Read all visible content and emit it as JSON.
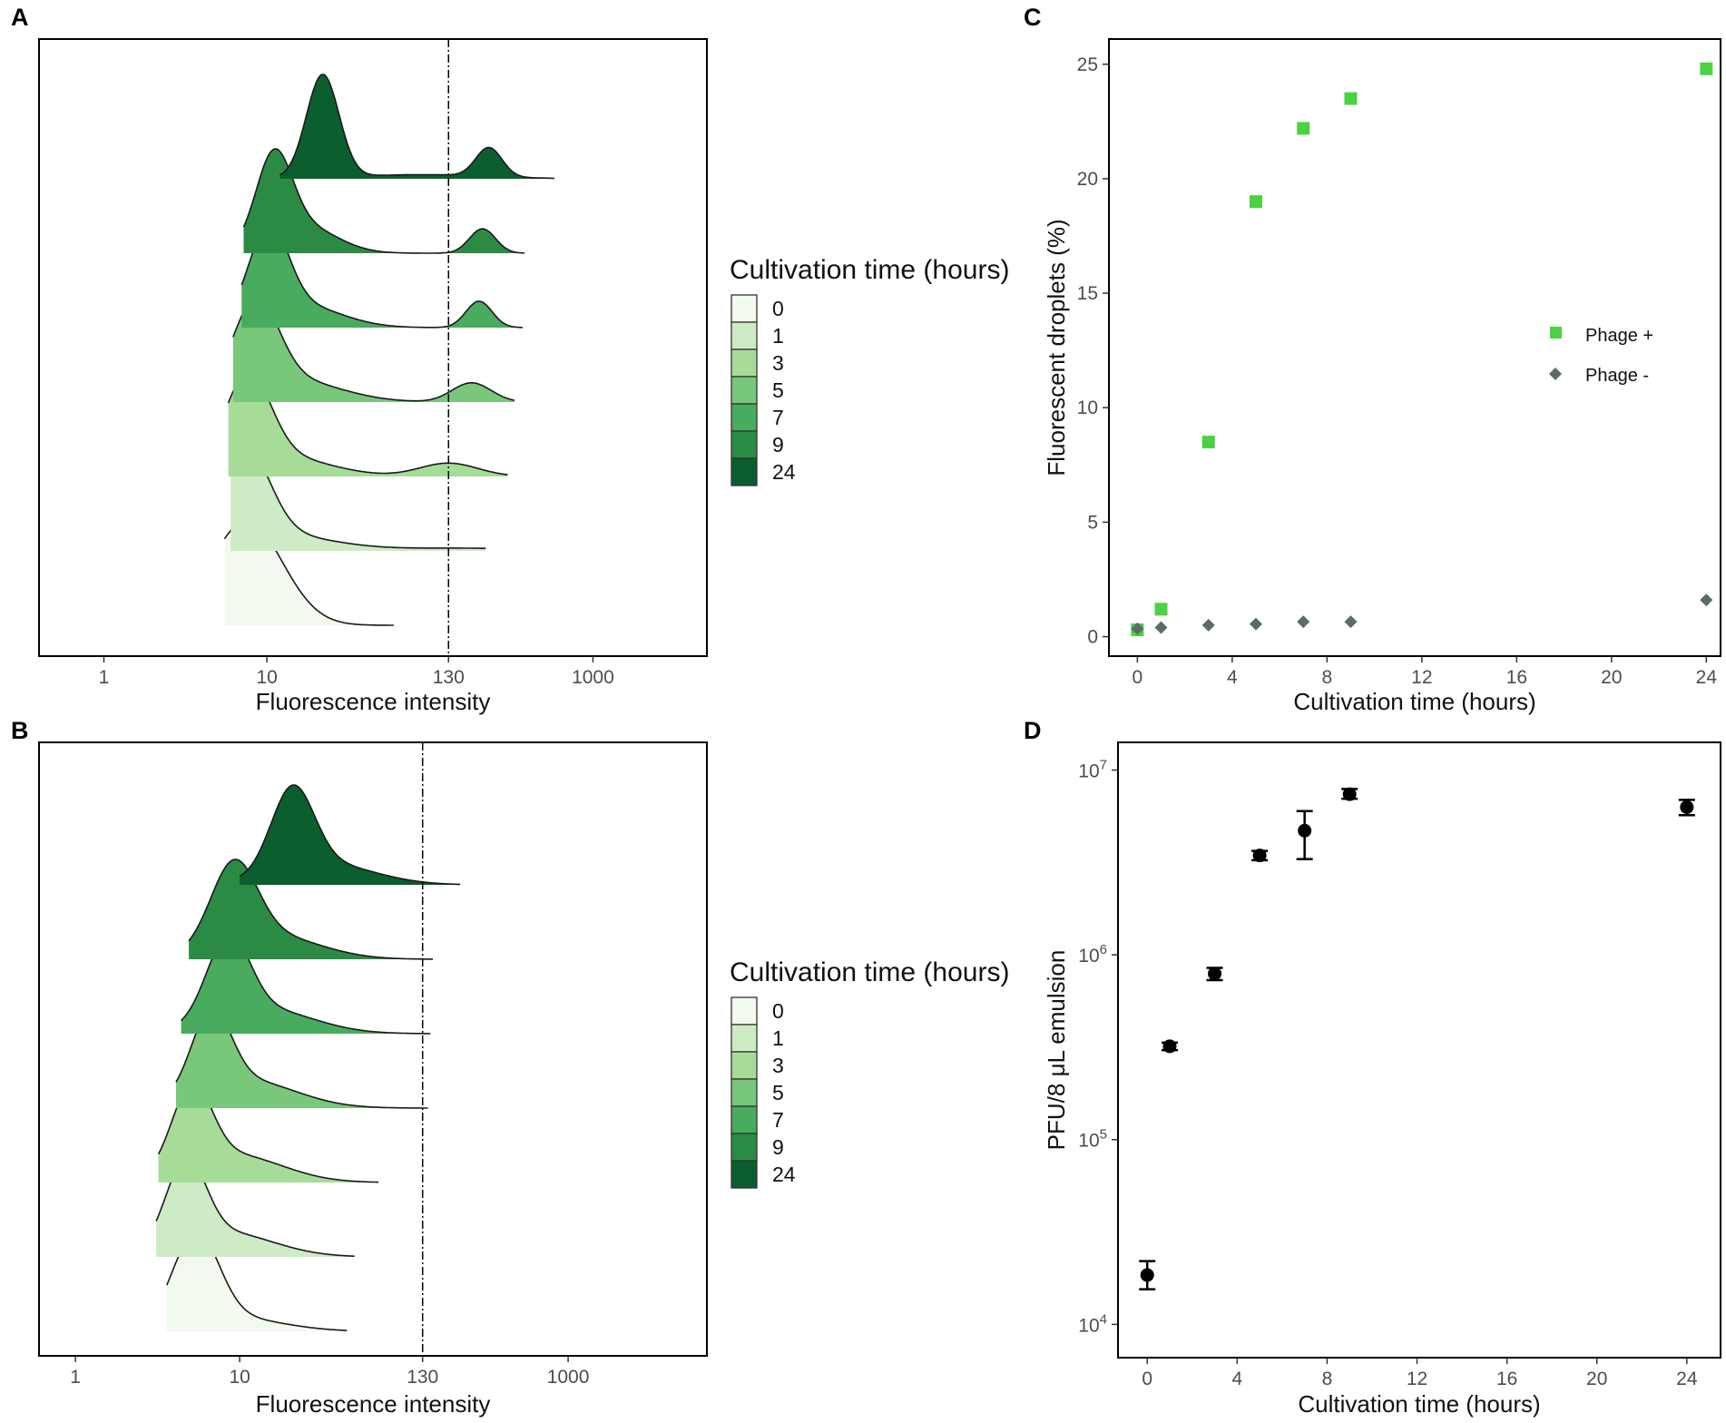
{
  "figure": {
    "panels": {
      "a": "A",
      "b": "B",
      "c": "C",
      "d": "D"
    }
  },
  "chart_data": [
    {
      "id": "A",
      "type": "area",
      "subtype": "ridgeline-density",
      "xlabel": "Fluorescence intensity",
      "xscale": "log10",
      "xlim": [
        0.4,
        5000
      ],
      "xticks": [
        1,
        10,
        130,
        1000
      ],
      "xtick_labels": [
        "1",
        "10",
        "130",
        "1000"
      ],
      "threshold": 130,
      "legend": {
        "title": "Cultivation time (hours)",
        "position": "right",
        "labels": [
          "0",
          "1",
          "3",
          "5",
          "7",
          "9",
          "24"
        ],
        "colors": [
          "#f2f9ee",
          "#cdebc4",
          "#a6dc98",
          "#79c77b",
          "#48ab5d",
          "#2b8b45",
          "#0b5e2d"
        ]
      },
      "series": [
        {
          "name": "0",
          "color": "#f2f9ee",
          "x_range": [
            5.5,
            60
          ],
          "peaks": [
            [
              7.5,
              0.22,
              1.0
            ]
          ]
        },
        {
          "name": "1",
          "color": "#cdebc4",
          "x_range": [
            6,
            220
          ],
          "peaks": [
            [
              7.3,
              0.15,
              1.0
            ],
            [
              11,
              0.35,
              0.18
            ],
            [
              150,
              0.4,
              0.03
            ]
          ]
        },
        {
          "name": "3",
          "color": "#a6dc98",
          "x_range": [
            5.8,
            300
          ],
          "peaks": [
            [
              7.6,
              0.14,
              1.0
            ],
            [
              12,
              0.3,
              0.22
            ],
            [
              130,
              0.18,
              0.15
            ]
          ]
        },
        {
          "name": "5",
          "color": "#79c77b",
          "x_range": [
            6.2,
            330
          ],
          "peaks": [
            [
              8.5,
              0.14,
              1.0
            ],
            [
              14,
              0.3,
              0.25
            ],
            [
              180,
              0.12,
              0.22
            ]
          ]
        },
        {
          "name": "7",
          "color": "#48ab5d",
          "x_range": [
            7,
            370
          ],
          "peaks": [
            [
              10.2,
              0.12,
              1.0
            ],
            [
              16,
              0.25,
              0.25
            ],
            [
              200,
              0.08,
              0.3
            ]
          ]
        },
        {
          "name": "9",
          "color": "#2b8b45",
          "x_range": [
            7.2,
            380
          ],
          "peaks": [
            [
              11,
              0.11,
              1.0
            ],
            [
              17,
              0.2,
              0.3
            ],
            [
              210,
              0.08,
              0.28
            ]
          ]
        },
        {
          "name": "24",
          "color": "#0b5e2d",
          "x_range": [
            12,
            580
          ],
          "peaks": [
            [
              22,
              0.1,
              1.0
            ],
            [
              90,
              0.4,
              0.04
            ],
            [
              230,
              0.08,
              0.28
            ]
          ]
        }
      ]
    },
    {
      "id": "B",
      "type": "area",
      "subtype": "ridgeline-density",
      "xlabel": "Fluorescence intensity",
      "xscale": "log10",
      "xlim": [
        0.6,
        7000
      ],
      "xticks": [
        1,
        10,
        130,
        1000
      ],
      "xtick_labels": [
        "1",
        "10",
        "130",
        "1000"
      ],
      "threshold": 130,
      "legend": {
        "title": "Cultivation time (hours)",
        "position": "right",
        "labels": [
          "0",
          "1",
          "3",
          "5",
          "7",
          "9",
          "24"
        ],
        "colors": [
          "#f2f9ee",
          "#cdebc4",
          "#a6dc98",
          "#79c77b",
          "#48ab5d",
          "#2b8b45",
          "#0b5e2d"
        ]
      },
      "series": [
        {
          "name": "0",
          "color": "#f2f9ee",
          "x_range": [
            3.6,
            45
          ],
          "peaks": [
            [
              5.4,
              0.14,
              1.0
            ],
            [
              9,
              0.3,
              0.15
            ]
          ]
        },
        {
          "name": "1",
          "color": "#cdebc4",
          "x_range": [
            3.1,
            50
          ],
          "peaks": [
            [
              4.7,
              0.12,
              1.0
            ],
            [
              8,
              0.3,
              0.3
            ]
          ]
        },
        {
          "name": "3",
          "color": "#a6dc98",
          "x_range": [
            3.2,
            70
          ],
          "peaks": [
            [
              5.1,
              0.12,
              1.0
            ],
            [
              9,
              0.3,
              0.35
            ]
          ]
        },
        {
          "name": "5",
          "color": "#79c77b",
          "x_range": [
            4.1,
            140
          ],
          "peaks": [
            [
              6.7,
              0.12,
              1.0
            ],
            [
              11,
              0.3,
              0.35
            ]
          ]
        },
        {
          "name": "7",
          "color": "#48ab5d",
          "x_range": [
            4.4,
            145
          ],
          "peaks": [
            [
              8.5,
              0.13,
              1.0
            ],
            [
              14,
              0.3,
              0.3
            ]
          ]
        },
        {
          "name": "9",
          "color": "#2b8b45",
          "x_range": [
            4.9,
            150
          ],
          "peaks": [
            [
              9.2,
              0.14,
              1.0
            ],
            [
              15,
              0.3,
              0.3
            ]
          ]
        },
        {
          "name": "24",
          "color": "#0b5e2d",
          "x_range": [
            10,
            220
          ],
          "peaks": [
            [
              21,
              0.13,
              1.0
            ],
            [
              33,
              0.3,
              0.25
            ]
          ]
        }
      ]
    },
    {
      "id": "C",
      "type": "scatter",
      "xlabel": "Cultivation time (hours)",
      "ylabel": "Fluorescent droplets (%)",
      "xlim": [
        -1.2,
        24.6
      ],
      "ylim": [
        -0.85,
        26.1
      ],
      "xticks": [
        0,
        4,
        8,
        12,
        16,
        20,
        24
      ],
      "yticks": [
        0,
        5,
        10,
        15,
        20,
        25
      ],
      "legend_position": "right",
      "series": [
        {
          "name": "Phage +",
          "marker": "square",
          "color": "#4dd143",
          "x": [
            0,
            1,
            3,
            5,
            7,
            9,
            24
          ],
          "y": [
            0.3,
            1.2,
            8.5,
            19.0,
            22.2,
            23.5,
            24.8
          ]
        },
        {
          "name": "Phage -",
          "marker": "diamond",
          "color": "#5b6b68",
          "x": [
            0,
            1,
            3,
            5,
            7,
            9,
            24
          ],
          "y": [
            0.35,
            0.4,
            0.5,
            0.55,
            0.65,
            0.65,
            1.6
          ]
        }
      ]
    },
    {
      "id": "D",
      "type": "scatter",
      "xlabel": "Cultivation time (hours)",
      "ylabel": "PFU/8 μL emulsion",
      "yscale": "log10",
      "xlim": [
        -1.3,
        25.5
      ],
      "ylim_log10": [
        3.82,
        7.15
      ],
      "xticks": [
        0,
        4,
        8,
        12,
        16,
        20,
        24
      ],
      "yticks": [
        10000,
        100000,
        1000000,
        10000000
      ],
      "ytick_base": "10",
      "ytick_exponents": [
        "4",
        "5",
        "6",
        "7"
      ],
      "series": [
        {
          "name": "PFU",
          "marker": "circle",
          "color": "#000000",
          "x": [
            0,
            1,
            3,
            5,
            7,
            9,
            24
          ],
          "y": [
            18500,
            320000,
            790000,
            3450000,
            4700000,
            7400000,
            6300000
          ],
          "y_low": [
            15500,
            305000,
            730000,
            3250000,
            3300000,
            7000000,
            5700000
          ],
          "y_high": [
            22000,
            335000,
            850000,
            3650000,
            6000000,
            7900000,
            6900000
          ]
        }
      ]
    }
  ]
}
